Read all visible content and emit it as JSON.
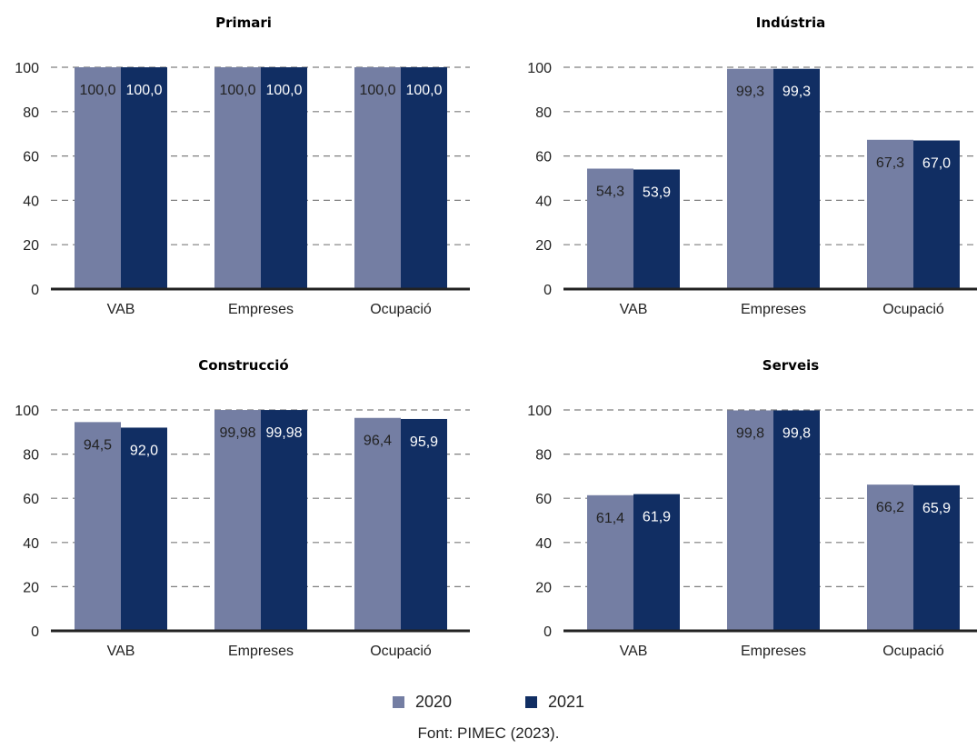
{
  "colors": {
    "s2020": "#747ea3",
    "s2021": "#112e63",
    "grid": "#7f7f7f",
    "axis": "#222222"
  },
  "legend": {
    "items": [
      "2020",
      "2021"
    ]
  },
  "source": "Font: PIMEC (2023).",
  "chart_data": [
    {
      "type": "bar",
      "title": "Primari",
      "categories": [
        "VAB",
        "Empreses",
        "Ocupació"
      ],
      "ylim": [
        0,
        100
      ],
      "yticks": [
        0,
        20,
        40,
        60,
        80,
        100
      ],
      "series": [
        {
          "name": "2020",
          "values": [
            100.0,
            100.0,
            100.0
          ],
          "labels": [
            "100,0",
            "100,0",
            "100,0"
          ]
        },
        {
          "name": "2021",
          "values": [
            100.0,
            100.0,
            100.0
          ],
          "labels": [
            "100,0",
            "100,0",
            "100,0"
          ]
        }
      ]
    },
    {
      "type": "bar",
      "title": "Indústria",
      "categories": [
        "VAB",
        "Empreses",
        "Ocupació"
      ],
      "ylim": [
        0,
        100
      ],
      "yticks": [
        0,
        20,
        40,
        60,
        80,
        100
      ],
      "series": [
        {
          "name": "2020",
          "values": [
            54.3,
            99.3,
            67.3
          ],
          "labels": [
            "54,3",
            "99,3",
            "67,3"
          ]
        },
        {
          "name": "2021",
          "values": [
            53.9,
            99.3,
            67.0
          ],
          "labels": [
            "53,9",
            "99,3",
            "67,0"
          ]
        }
      ]
    },
    {
      "type": "bar",
      "title": "Construcció",
      "categories": [
        "VAB",
        "Empreses",
        "Ocupació"
      ],
      "ylim": [
        0,
        100
      ],
      "yticks": [
        0,
        20,
        40,
        60,
        80,
        100
      ],
      "series": [
        {
          "name": "2020",
          "values": [
            94.5,
            99.98,
            96.4
          ],
          "labels": [
            "94,5",
            "99,98",
            "96,4"
          ]
        },
        {
          "name": "2021",
          "values": [
            92.0,
            99.98,
            95.9
          ],
          "labels": [
            "92,0",
            "99,98",
            "95,9"
          ]
        }
      ]
    },
    {
      "type": "bar",
      "title": "Serveis",
      "categories": [
        "VAB",
        "Empreses",
        "Ocupació"
      ],
      "ylim": [
        0,
        100
      ],
      "yticks": [
        0,
        20,
        40,
        60,
        80,
        100
      ],
      "series": [
        {
          "name": "2020",
          "values": [
            61.4,
            99.8,
            66.2
          ],
          "labels": [
            "61,4",
            "99,8",
            "66,2"
          ]
        },
        {
          "name": "2021",
          "values": [
            61.9,
            99.8,
            65.9
          ],
          "labels": [
            "61,9",
            "99,8",
            "65,9"
          ]
        }
      ]
    }
  ]
}
